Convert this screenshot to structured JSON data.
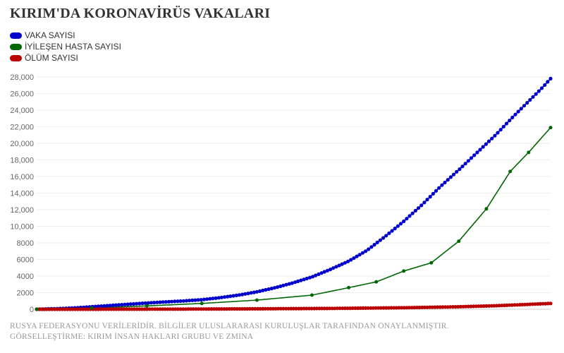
{
  "title": "KIRIM'DA KORONAVİRÜS VAKALARI",
  "legend": {
    "items": [
      {
        "label": "VAKA SAYISI",
        "color": "#0000cc"
      },
      {
        "label": "İYİLEŞEN HASTA SAYISI",
        "color": "#006600"
      },
      {
        "label": "ÖLÜM SAYISI",
        "color": "#bb0000"
      }
    ]
  },
  "footer": {
    "line1": "RUSYA FEDERASYONU VERİLERİDİR. BİLGİLER ULUSLARARASI KURULUŞLAR TARAFINDAN ONAYLANMIŞTIR.",
    "line2": "GÖRSELLEŞTİRME: KIRIM İNSAN HAKLARI GRUBU VE ZMINA"
  },
  "chart_data": {
    "type": "line",
    "title": "KIRIM'DA KORONAVİRÜS VAKALARI",
    "xlabel": "",
    "ylabel": "",
    "ylim": [
      0,
      28000
    ],
    "yticks": [
      0,
      2000,
      4000,
      6000,
      8000,
      10000,
      12000,
      14000,
      16000,
      18000,
      20000,
      22000,
      24000,
      26000,
      28000
    ],
    "ytick_labels": [
      "0",
      "2000",
      "4000",
      "6000",
      "8000",
      "10,000",
      "12,000",
      "14,000",
      "16,000",
      "18,000",
      "20,000",
      "22,000",
      "24,000",
      "26,000",
      "28,000"
    ],
    "grid": true,
    "legend_position": "top-left",
    "x_axis_labels_shown": false,
    "series": [
      {
        "name": "VAKA SAYISI",
        "color": "#0000cc",
        "x": [
          0,
          10,
          20,
          30,
          40,
          50,
          60,
          70,
          80,
          90,
          100,
          110,
          120,
          130,
          140,
          150,
          160,
          170,
          180,
          190,
          200,
          210,
          220,
          230,
          240,
          250,
          260,
          265,
          270,
          275,
          280,
          285,
          290,
          295,
          300
        ],
        "values": [
          0,
          60,
          150,
          300,
          450,
          600,
          750,
          880,
          1000,
          1150,
          1400,
          1700,
          2100,
          2600,
          3200,
          3900,
          4800,
          5800,
          7100,
          8800,
          10600,
          12600,
          14800,
          16800,
          18900,
          21000,
          23300,
          24400,
          25500,
          26600,
          27800,
          27800,
          27800,
          27800,
          27800
        ],
        "note_points_drawn_until": 280
      },
      {
        "name": "İYİLEŞEN HASTA SAYISI",
        "color": "#006600",
        "x": [
          0,
          30,
          60,
          90,
          120,
          150,
          170,
          185,
          200,
          215,
          230,
          245,
          258,
          268,
          280
        ],
        "values": [
          0,
          150,
          400,
          700,
          1100,
          1700,
          2600,
          3300,
          4600,
          5600,
          8200,
          12100,
          16600,
          18900,
          21900
        ]
      },
      {
        "name": "ÖLÜM SAYISI",
        "color": "#bb0000",
        "x": [
          0,
          40,
          80,
          120,
          160,
          200,
          230,
          250,
          265,
          280
        ],
        "values": [
          0,
          5,
          20,
          50,
          100,
          180,
          300,
          420,
          560,
          700
        ]
      }
    ]
  }
}
